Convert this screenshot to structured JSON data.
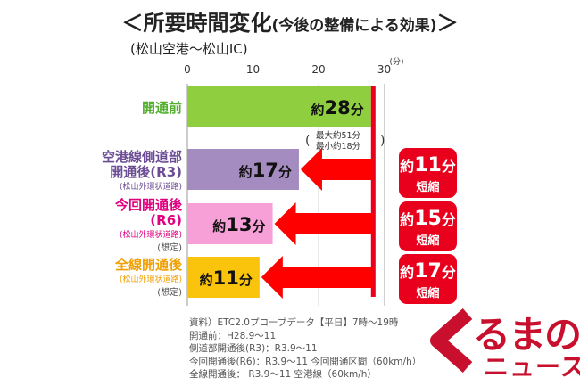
{
  "header": {
    "title_main": "＜所要時間変化",
    "title_paren": "(今後の整備による効果)",
    "title_end": "＞",
    "subtitle": "(松山空港〜松山IC)"
  },
  "colors": {
    "bar_before": "#8fce3f",
    "bar_r3": "#a58cc0",
    "bar_r6": "#f7a0d8",
    "bar_full": "#fbc40c",
    "arrow": "#ff0000",
    "reference_line": "#e8001c",
    "label_green": "#55b030",
    "label_purple": "#6c4c95",
    "label_pink": "#e0007f",
    "label_orange": "#f0a000"
  },
  "chart_data": {
    "type": "bar",
    "orientation": "horizontal",
    "unit_label": "(分)",
    "xlim": [
      0,
      30
    ],
    "xticks": [
      0,
      10,
      20,
      30
    ],
    "reference_line_x": 28,
    "grid": true,
    "categories": [
      {
        "lines": [
          "開通前"
        ],
        "note": "",
        "assumed": "",
        "value": 28,
        "label": "約28分",
        "color": "bar_before",
        "label_color": "label_green"
      },
      {
        "lines": [
          "空港線側道部",
          "開通後(R3)"
        ],
        "note": "(松山外環状道路)",
        "assumed": "",
        "value": 17,
        "label": "約17分",
        "color": "bar_r3",
        "label_color": "label_purple"
      },
      {
        "lines": [
          "今回開通後",
          "(R6)"
        ],
        "note": "(松山外環状道路)",
        "assumed": "(想定)",
        "value": 13,
        "label": "約13分",
        "color": "bar_r6",
        "label_color": "label_pink"
      },
      {
        "lines": [
          "全線開通後"
        ],
        "note": "(松山外環状道路)",
        "assumed": "(想定)",
        "value": 11,
        "label": "約11分",
        "color": "bar_full",
        "label_color": "label_orange"
      }
    ],
    "range_annotation": [
      "最大約51分",
      "最小約18分"
    ],
    "reductions": [
      {
        "num": "11",
        "unit": "分",
        "label": "短縮"
      },
      {
        "num": "15",
        "unit": "分",
        "label": "短縮"
      },
      {
        "num": "17",
        "unit": "分",
        "label": "短縮"
      }
    ]
  },
  "source": [
    "資料）ETC2.0プローブデータ【平日】7時〜19時",
    "開通前：H28.9〜11",
    "側道部開通後(R3)：R3.9〜11",
    "今回開通後(R6)：R3.9〜11 今回開通区間（60km/h）",
    "全線開通後： R3.9〜11 空港線（60km/h）"
  ],
  "logo": {
    "line1": "るまの",
    "line2": "ニュース"
  }
}
